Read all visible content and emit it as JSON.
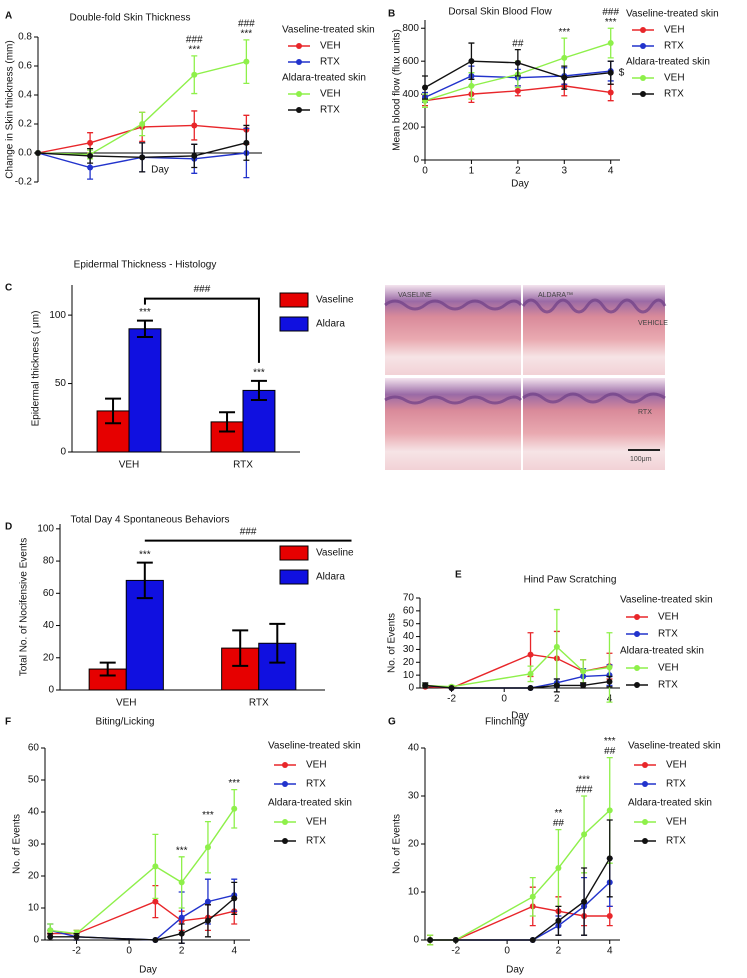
{
  "chart_data": [
    {
      "type": "line",
      "panel": "A",
      "title": "Double-fold Skin Thickness",
      "xlabel": "Day",
      "ylabel": "Change in Skin thickness (mm)",
      "legend_groups": [
        "Vaseline-treated skin",
        "Aldara-treated skin"
      ],
      "x": [
        0,
        1,
        2,
        3,
        4
      ],
      "xlim": [
        0,
        4.3
      ],
      "ylim": [
        -0.2,
        0.8
      ],
      "yticks": [
        -0.2,
        {
          "value": 0,
          "label": "0.0"
        },
        0.2,
        0.4,
        0.6,
        0.8
      ],
      "series": [
        {
          "name": "VEH",
          "color": "#e8262a",
          "values": [
            0,
            0.07,
            0.18,
            0.19,
            0.16
          ],
          "errors": [
            0,
            0.07,
            0.1,
            0.1,
            0.1
          ]
        },
        {
          "name": "RTX",
          "color": "#2233cc",
          "values": [
            0,
            -0.1,
            -0.03,
            -0.04,
            0
          ],
          "errors": [
            0,
            0.08,
            0.1,
            0.1,
            0.17
          ]
        },
        {
          "name": "VEH",
          "color": "#8ef04a",
          "values": [
            0,
            -0.01,
            0.2,
            0.54,
            0.63
          ],
          "errors": [
            0,
            0.03,
            0.08,
            0.13,
            0.15
          ]
        },
        {
          "name": "RTX",
          "color": "#111111",
          "values": [
            0,
            -0.02,
            -0.03,
            -0.02,
            0.07
          ],
          "errors": [
            0,
            0.05,
            0.1,
            0.08,
            0.12
          ]
        }
      ],
      "annotations": [
        {
          "text": "***",
          "x": 3
        },
        {
          "text": "###",
          "x": 3
        },
        {
          "text": "***",
          "x": 4
        },
        {
          "text": "###",
          "x": 4
        }
      ]
    },
    {
      "type": "line",
      "panel": "B",
      "title": "Dorsal Skin Blood Flow",
      "xlabel": "Day",
      "ylabel": "Mean blood flow (flux units)",
      "legend_groups": [
        "Vaseline-treated skin",
        "Aldara-treated skin"
      ],
      "x": [
        0,
        1,
        2,
        3,
        4
      ],
      "xlim": [
        0,
        4.2
      ],
      "xticks": [
        0,
        1,
        2,
        3,
        4
      ],
      "ylim": [
        0,
        850
      ],
      "yticks": [
        0,
        200,
        400,
        600,
        800
      ],
      "series": [
        {
          "name": "VEH",
          "color": "#e8262a",
          "values": [
            360,
            400,
            420,
            450,
            410
          ],
          "errors": [
            30,
            50,
            30,
            60,
            50
          ]
        },
        {
          "name": "RTX",
          "color": "#2233cc",
          "values": [
            380,
            510,
            500,
            510,
            540
          ],
          "errors": [
            30,
            60,
            50,
            50,
            60
          ]
        },
        {
          "name": "VEH",
          "color": "#8ef04a",
          "values": [
            360,
            450,
            520,
            620,
            710
          ],
          "errors": [
            40,
            80,
            80,
            120,
            90
          ]
        },
        {
          "name": "RTX",
          "color": "#111111",
          "values": [
            440,
            600,
            590,
            500,
            530
          ],
          "errors": [
            70,
            110,
            80,
            70,
            70
          ]
        }
      ],
      "annotations": [
        {
          "text": "##",
          "x": 2
        },
        {
          "text": "***",
          "x": 3
        },
        {
          "text": "***",
          "x": 4
        },
        {
          "text": "###",
          "x": 4
        },
        {
          "text": "$",
          "x": 4,
          "series": 3
        }
      ]
    },
    {
      "type": "bar",
      "panel": "C",
      "title": "Epidermal Thickness - Histology",
      "ylabel": "Epidermal thickness ( μm)",
      "categories": [
        "VEH",
        "RTX"
      ],
      "ylim": [
        0,
        122
      ],
      "yticks": [
        0,
        50,
        100
      ],
      "series": [
        {
          "name": "Vaseline",
          "color": "#e60000",
          "values": [
            30,
            22
          ],
          "errors": [
            9,
            7
          ]
        },
        {
          "name": "Aldara",
          "color": "#1010e0",
          "values": [
            90,
            45
          ],
          "errors": [
            6,
            7
          ]
        }
      ],
      "annotations": [
        {
          "text": "***",
          "category": 0,
          "series": 1
        },
        {
          "text": "***",
          "category": 1,
          "series": 1
        }
      ],
      "bracket": {
        "text": "###",
        "from": [
          0,
          1
        ],
        "to": [
          1,
          1
        ],
        "drops": true
      }
    },
    {
      "type": "bar",
      "panel": "D",
      "title": "Total Day 4 Spontaneous Behaviors",
      "ylabel": "Total No. of Nocifensive Events",
      "categories": [
        "VEH",
        "RTX"
      ],
      "ylim": [
        0,
        103
      ],
      "yticks": [
        0,
        20,
        40,
        60,
        80,
        100
      ],
      "series": [
        {
          "name": "Vaseline",
          "color": "#e60000",
          "values": [
            13,
            26
          ],
          "errors": [
            4,
            11
          ]
        },
        {
          "name": "Aldara",
          "color": "#1010e0",
          "values": [
            68,
            29
          ],
          "errors": [
            11,
            12
          ]
        }
      ],
      "annotations": [
        {
          "text": "***",
          "category": 0,
          "series": 1
        }
      ],
      "bracket": {
        "text": "###",
        "from": [
          0,
          1
        ],
        "to": [
          1,
          1
        ],
        "drops": false
      }
    },
    {
      "type": "line",
      "panel": "E",
      "title": "Hind Paw Scratching",
      "xlabel": "Day",
      "ylabel": "No. of Events",
      "legend_groups": [
        "Vaseline-treated skin",
        "Aldara-treated skin"
      ],
      "x": [
        -3,
        -2,
        1,
        2,
        3,
        4
      ],
      "xlim": [
        -3.2,
        4.4
      ],
      "xticks": [
        -2,
        0,
        2,
        4
      ],
      "ylim": [
        0,
        70
      ],
      "yticks": [
        0,
        10,
        20,
        30,
        40,
        50,
        60,
        70
      ],
      "series": [
        {
          "name": "VEH",
          "color": "#e8262a",
          "values": [
            1,
            0,
            26,
            23,
            13,
            17
          ],
          "errors": [
            1,
            0,
            17,
            21,
            9,
            10
          ]
        },
        {
          "name": "RTX",
          "color": "#2233cc",
          "values": [
            2,
            0,
            0,
            4,
            9,
            10
          ],
          "errors": [
            1,
            0,
            0,
            3,
            6,
            8
          ]
        },
        {
          "name": "VEH",
          "color": "#8ef04a",
          "values": [
            2,
            1,
            11,
            32,
            13,
            16
          ],
          "errors": [
            1,
            1,
            6,
            29,
            9,
            27
          ]
        },
        {
          "name": "RTX",
          "color": "#111111",
          "values": [
            2,
            0,
            0,
            2,
            2,
            5
          ],
          "errors": [
            2,
            0,
            0,
            5,
            2,
            4
          ]
        }
      ],
      "annotations": []
    },
    {
      "type": "line",
      "panel": "F",
      "title": "Biting/Licking",
      "xlabel": "Day",
      "ylabel": "No. of Events",
      "legend_groups": [
        "Vaseline-treated skin",
        "Aldara-treated skin"
      ],
      "x": [
        -3,
        -2,
        1,
        2,
        3,
        4
      ],
      "xlim": [
        -3.2,
        4.6
      ],
      "xticks": [
        -2,
        0,
        2,
        4
      ],
      "ylim": [
        0,
        60
      ],
      "yticks": [
        0,
        10,
        20,
        30,
        40,
        50,
        60
      ],
      "series": [
        {
          "name": "VEH",
          "color": "#e8262a",
          "values": [
            2,
            2,
            12,
            6,
            7,
            9
          ],
          "errors": [
            1,
            1,
            5,
            3,
            4,
            4
          ]
        },
        {
          "name": "RTX",
          "color": "#2233cc",
          "values": [
            3,
            1,
            0,
            7,
            12,
            14
          ],
          "errors": [
            2,
            1,
            0,
            8,
            7,
            5
          ]
        },
        {
          "name": "VEH",
          "color": "#8ef04a",
          "values": [
            3,
            2,
            23,
            18,
            29,
            41
          ],
          "errors": [
            2,
            1,
            10,
            8,
            8,
            6
          ]
        },
        {
          "name": "RTX",
          "color": "#111111",
          "values": [
            1,
            1,
            0,
            2,
            6,
            13
          ],
          "errors": [
            1,
            1,
            0,
            3,
            5,
            5
          ]
        }
      ],
      "annotations": [
        {
          "text": "***",
          "x": 2
        },
        {
          "text": "***",
          "x": 3
        },
        {
          "text": "***",
          "x": 4
        }
      ]
    },
    {
      "type": "line",
      "panel": "G",
      "title": "Flinching",
      "xlabel": "Day",
      "ylabel": "No. of Events",
      "legend_groups": [
        "Vaseline-treated skin",
        "Aldara-treated skin"
      ],
      "x": [
        -3,
        -2,
        1,
        2,
        3,
        4
      ],
      "xlim": [
        -3.2,
        4.4
      ],
      "xticks": [
        -2,
        0,
        2,
        4
      ],
      "ylim": [
        0,
        40
      ],
      "yticks": [
        0,
        10,
        20,
        30,
        40
      ],
      "series": [
        {
          "name": "VEH",
          "color": "#e8262a",
          "values": [
            0,
            0,
            7,
            6,
            5,
            5
          ],
          "errors": [
            1,
            0,
            4,
            3,
            2,
            2
          ]
        },
        {
          "name": "RTX",
          "color": "#2233cc",
          "values": [
            0,
            0,
            0,
            3,
            7,
            12
          ],
          "errors": [
            0,
            0,
            0,
            2,
            6,
            5
          ]
        },
        {
          "name": "VEH",
          "color": "#8ef04a",
          "values": [
            0,
            0,
            9,
            15,
            22,
            27
          ],
          "errors": [
            1,
            0,
            4,
            8,
            8,
            11
          ]
        },
        {
          "name": "RTX",
          "color": "#111111",
          "values": [
            0,
            0,
            0,
            4,
            8,
            17
          ],
          "errors": [
            0,
            0,
            0,
            3,
            7,
            8
          ]
        }
      ],
      "annotations": [
        {
          "text": "##",
          "x": 2
        },
        {
          "text": "**",
          "x": 2
        },
        {
          "text": "###",
          "x": 3
        },
        {
          "text": "***",
          "x": 3
        },
        {
          "text": "##",
          "x": 4
        },
        {
          "text": "***",
          "x": 4
        }
      ]
    }
  ],
  "histology": {
    "columns": [
      "VASELINE",
      "ALDARA™"
    ],
    "rows": [
      "VEHICLE",
      "RTX"
    ],
    "scale_bar": "100μm"
  }
}
